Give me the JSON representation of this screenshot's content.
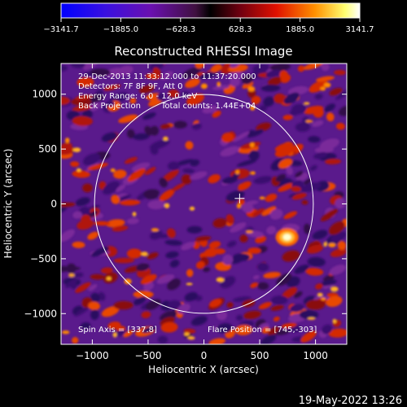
{
  "chart_data": {
    "type": "heatmap",
    "title": "Reconstructed RHESSI Image",
    "xlabel": "Heliocentric X (arcsec)",
    "ylabel": "Heliocentric Y (arcsec)",
    "xlim": [
      -1280,
      1280
    ],
    "ylim": [
      -1280,
      1280
    ],
    "xticks": [
      -1000,
      -500,
      0,
      500,
      1000
    ],
    "xtick_labels": [
      "−1000",
      "−500",
      "0",
      "500",
      "1000"
    ],
    "yticks": [
      -1000,
      -500,
      0,
      500,
      1000
    ],
    "ytick_labels": [
      "−1000",
      "−500",
      "0",
      "500",
      "1000"
    ],
    "colorbar": {
      "range": [
        -3141.7,
        3141.7
      ],
      "ticks": [
        -3141.7,
        -1885.0,
        -628.3,
        628.3,
        1885.0,
        3141.7
      ],
      "tick_labels": [
        "−3141.7",
        "−1885.0",
        "−628.3",
        "628.3",
        "1885.0",
        "3141.7"
      ],
      "colors": [
        "#0000ff",
        "#5a00c8",
        "#7a1090",
        "#300038",
        "#900000",
        "#ff2000",
        "#ffa000",
        "#ffff60",
        "#ffffff"
      ]
    },
    "annotations": [
      "29-Dec-2013 11:33:12.000 to 11:37:20.000",
      "Detectors: 7F 8F 9F, Att 0",
      "Energy Range: 6.0 - 12.0 keV",
      "Back Projection",
      "Total counts: 1.44E+04"
    ],
    "spin_axis_label": "Spin Axis = [337.8]",
    "flare_position_label": "Flare Position = [745,-303]",
    "solar_limb_radius_arcsec": 980,
    "center_marker": [
      320,
      50
    ],
    "flare_position": [
      745,
      -303
    ]
  },
  "footer": {
    "timestamp": "19-May-2022 13:26"
  }
}
